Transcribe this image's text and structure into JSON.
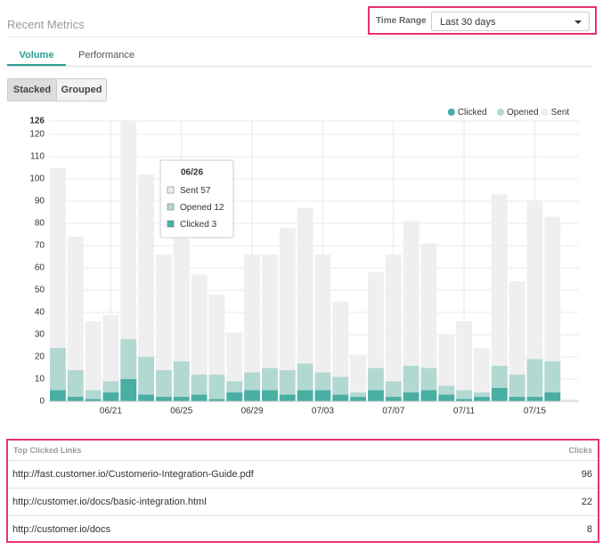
{
  "header": {
    "title": "Recent Metrics",
    "time_range_label": "Time Range",
    "time_range_value": "Last 30 days"
  },
  "tabs": [
    "Volume",
    "Performance"
  ],
  "buttons": [
    "Stacked",
    "Grouped"
  ],
  "chart_data": {
    "type": "bar",
    "overlay": true,
    "categories": [
      null,
      null,
      null,
      "06/21",
      null,
      null,
      null,
      "06/25",
      null,
      null,
      null,
      "06/29",
      null,
      null,
      null,
      "07/03",
      null,
      null,
      null,
      "07/07",
      null,
      null,
      null,
      "07/11",
      null,
      null,
      null,
      "07/15",
      null,
      null
    ],
    "series": [
      {
        "name": "Clicked",
        "color": "#4aaea3",
        "values": [
          5,
          2,
          1,
          4,
          10,
          3,
          2,
          2,
          3,
          1,
          4,
          5,
          5,
          3,
          5,
          5,
          3,
          2,
          5,
          2,
          4,
          5,
          3,
          1,
          2,
          6,
          2,
          2,
          4,
          0
        ]
      },
      {
        "name": "Opened",
        "color": "#b2d8d2",
        "values": [
          24,
          14,
          5,
          9,
          28,
          20,
          14,
          18,
          12,
          12,
          9,
          13,
          15,
          14,
          17,
          13,
          11,
          4,
          15,
          9,
          16,
          15,
          7,
          5,
          4,
          16,
          12,
          19,
          18,
          0
        ]
      },
      {
        "name": "Sent",
        "color": "#efefef",
        "values": [
          105,
          74,
          36,
          39,
          126,
          102,
          66,
          75,
          57,
          48,
          31,
          66,
          66,
          78,
          87,
          66,
          45,
          21,
          58,
          66,
          81,
          71,
          30,
          36,
          24,
          93,
          54,
          90,
          83,
          1
        ]
      }
    ],
    "ylim": [
      0,
      126
    ],
    "yticks": [
      0,
      10,
      20,
      30,
      40,
      50,
      60,
      70,
      80,
      90,
      100,
      110,
      120,
      126
    ],
    "grid": true,
    "legend": "top-right",
    "tooltip": {
      "title": "06/26",
      "index": 8
    }
  },
  "table": {
    "headers": [
      "Top Clicked Links",
      "Clicks"
    ],
    "rows": [
      [
        "http://fast.customer.io/Customerio-Integration-Guide.pdf",
        "96"
      ],
      [
        "http://customer.io/docs/basic-integration.html",
        "22"
      ],
      [
        "http://customer.io/docs",
        "8"
      ]
    ]
  }
}
